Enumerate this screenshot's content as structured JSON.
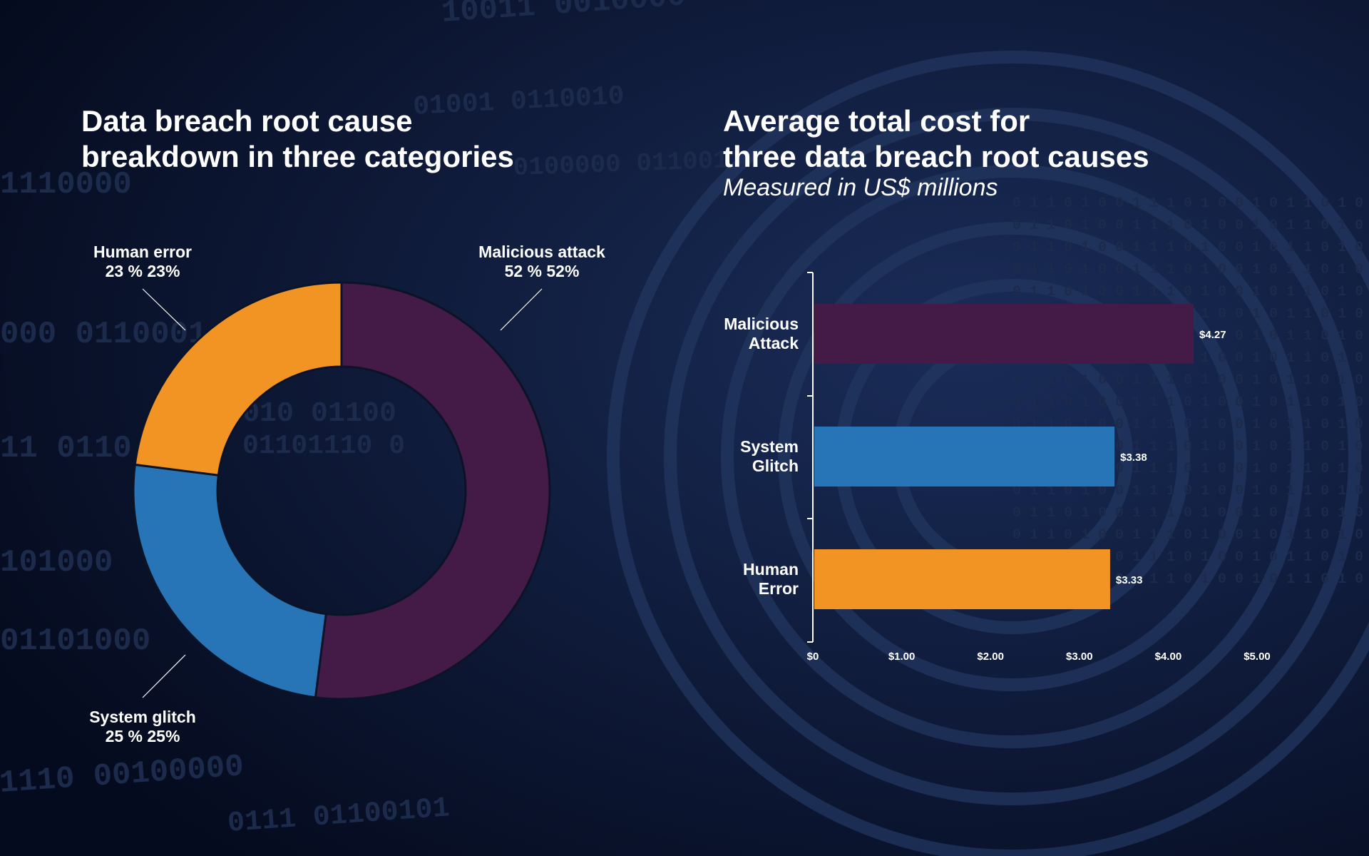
{
  "colors": {
    "background": "#0a1430",
    "malicious": "#441b46",
    "system": "#2774b7",
    "human": "#f29423",
    "text": "#ffffff"
  },
  "left": {
    "title_line1": "Data breach root cause",
    "title_line2": "breakdown in three categories"
  },
  "right": {
    "title_line1": "Average total cost for",
    "title_line2": "three data breach root causes",
    "subtitle": "Measured in US$ millions"
  },
  "chart_data": [
    {
      "type": "pie",
      "donut": true,
      "title": "Data breach root cause breakdown in three categories",
      "slices": [
        {
          "label": "Malicious attack",
          "value": 52,
          "value_label": "52 % 52%",
          "color": "#441b46"
        },
        {
          "label": "System glitch",
          "value": 25,
          "value_label": "25 % 25%",
          "color": "#2774b7"
        },
        {
          "label": "Human error",
          "value": 23,
          "value_label": "23 % 23%",
          "color": "#f29423"
        }
      ]
    },
    {
      "type": "bar",
      "orientation": "horizontal",
      "title": "Average total cost for three data breach root causes",
      "subtitle": "Measured in US$ millions",
      "categories": [
        {
          "line1": "Malicious",
          "line2": "Attack"
        },
        {
          "line1": "System",
          "line2": "Glitch"
        },
        {
          "line1": "Human",
          "line2": "Error"
        }
      ],
      "values": [
        4.27,
        3.38,
        3.33
      ],
      "value_labels": [
        "$4.27",
        "$3.38",
        "$3.33"
      ],
      "colors": [
        "#441b46",
        "#2774b7",
        "#f29423"
      ],
      "xlim": [
        0,
        5
      ],
      "xticks": [
        0,
        1,
        2,
        3,
        4,
        5
      ],
      "xtick_labels": [
        "$0",
        "$1.00",
        "$2.00",
        "$3.00",
        "$4.00",
        "$5.00"
      ]
    }
  ]
}
